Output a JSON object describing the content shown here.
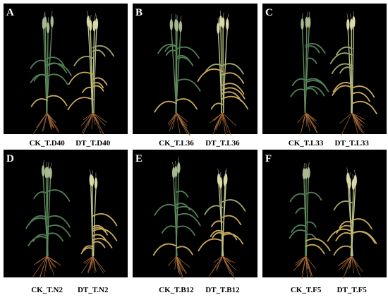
{
  "panels": [
    {
      "label": "A",
      "captions": [
        "CK_T.D40",
        "DT_T.D40"
      ]
    },
    {
      "label": "B",
      "captions": [
        "CK_T.L36",
        "DT_T.L36"
      ]
    },
    {
      "label": "C",
      "captions": [
        "CK_T.L33",
        "DT_T.L33"
      ]
    },
    {
      "label": "D",
      "captions": [
        "CK_T.N2",
        "DT_T.N2"
      ]
    },
    {
      "label": "E",
      "captions": [
        "CK_T.B12",
        "DT_T.B12"
      ]
    },
    {
      "label": "F",
      "captions": [
        "CK_T.F5",
        "DT_T.F5"
      ]
    }
  ]
}
